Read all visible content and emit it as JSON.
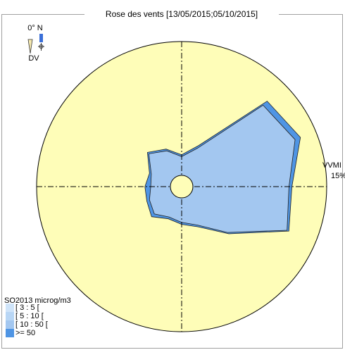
{
  "chart_data": {
    "type": "polar-stacked",
    "title": "Rose des vents [13/05/2015;05/10/2015]",
    "north_label": "0° N",
    "direction_label": "DV",
    "radial_axis_label": "VVMI",
    "legend_title": "SO2013 microg/m3",
    "directions": [
      0,
      22.5,
      45,
      67.5,
      90,
      112.5,
      135,
      157.5,
      180,
      202.5,
      225,
      247.5,
      270,
      292.5,
      315,
      337.5
    ],
    "rlim": [
      0,
      15
    ],
    "rticks": [
      {
        "value": 15,
        "label": "15%"
      }
    ],
    "series": [
      {
        "name": "[ 3 : 5 [",
        "color": "#cfe4f9",
        "values": [
          0.2,
          0.2,
          0.2,
          0.2,
          0.2,
          0.2,
          0.2,
          0.2,
          0.2,
          0.2,
          0.2,
          0.2,
          0.2,
          0.2,
          0.2,
          0.2
        ]
      },
      {
        "name": "[ 5 : 10 [",
        "color": "#b8d6f5",
        "values": [
          0.3,
          0.3,
          0.3,
          0.3,
          0.3,
          0.3,
          0.3,
          0.3,
          0.3,
          0.3,
          0.3,
          0.3,
          0.3,
          0.3,
          0.3,
          0.3
        ]
      },
      {
        "name": "[ 10 : 50 [",
        "color": "#a3c7f0",
        "values": [
          2.6,
          3.8,
          11.4,
          12.2,
          10.6,
          11.3,
          6.2,
          3.8,
          3.2,
          2.9,
          3.5,
          3.1,
          2.7,
          2.9,
          4.3,
          3.5
        ]
      },
      {
        "name": ">= 50",
        "color": "#4f95e4",
        "values": [
          0.2,
          0.3,
          0.6,
          0.6,
          0.3,
          0.2,
          0.2,
          0.2,
          0.2,
          0.2,
          0.4,
          0.3,
          0.6,
          0.2,
          0.2,
          0.2
        ]
      }
    ]
  }
}
